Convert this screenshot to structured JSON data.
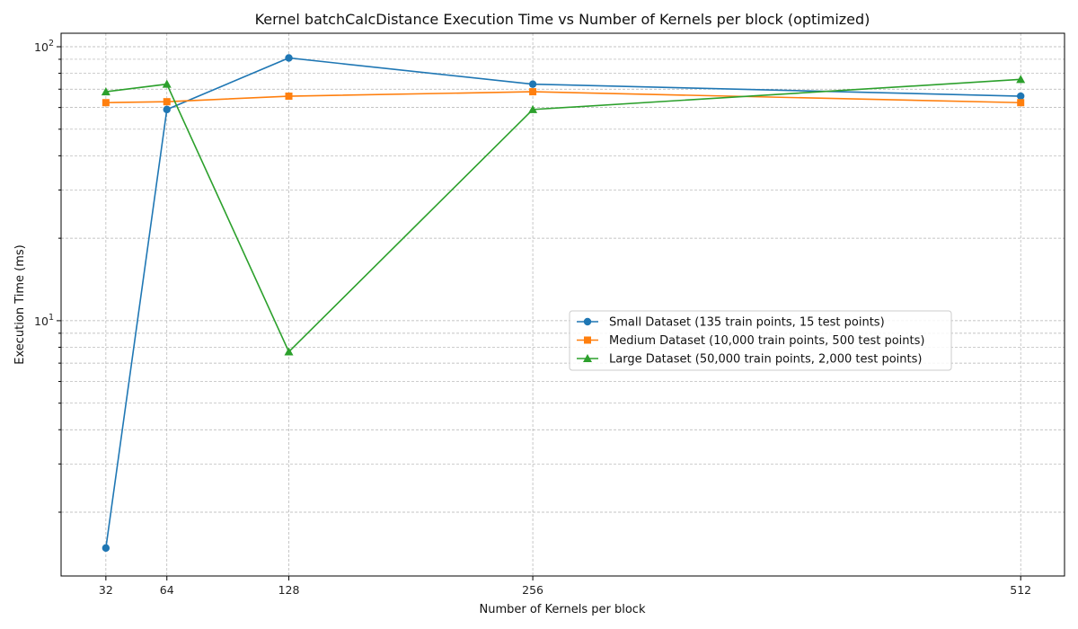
{
  "chart_data": {
    "type": "line",
    "title": "Kernel batchCalcDistance Execution Time vs Number of Kernels per block (optimized)",
    "xlabel": "Number of Kernels per block",
    "ylabel": "Execution Time (ms)",
    "x": [
      32,
      64,
      128,
      256,
      512
    ],
    "x_tick_labels": [
      "32",
      "64",
      "128",
      "256",
      "512"
    ],
    "xlim": [
      8.5,
      535
    ],
    "y_scale": "log",
    "ylim": [
      1.17,
      112
    ],
    "y_ticks": [
      {
        "value": 10,
        "base": "10",
        "exp": "1"
      },
      {
        "value": 100,
        "base": "10",
        "exp": "2"
      }
    ],
    "grid": true,
    "legend_position": "center-right",
    "series": [
      {
        "name": "Small Dataset (135 train points, 15 test points)",
        "color": "#1f77b4",
        "marker": "circle",
        "values": [
          1.48,
          59,
          91,
          73,
          66
        ]
      },
      {
        "name": "Medium Dataset (10,000 train points, 500 test points)",
        "color": "#ff7f0e",
        "marker": "square",
        "values": [
          62.5,
          63,
          66,
          68.5,
          62.5
        ]
      },
      {
        "name": "Large Dataset (50,000 train points, 2,000 test points)",
        "color": "#2ca02c",
        "marker": "triangle",
        "values": [
          68.5,
          73,
          7.7,
          59,
          76
        ]
      }
    ]
  }
}
